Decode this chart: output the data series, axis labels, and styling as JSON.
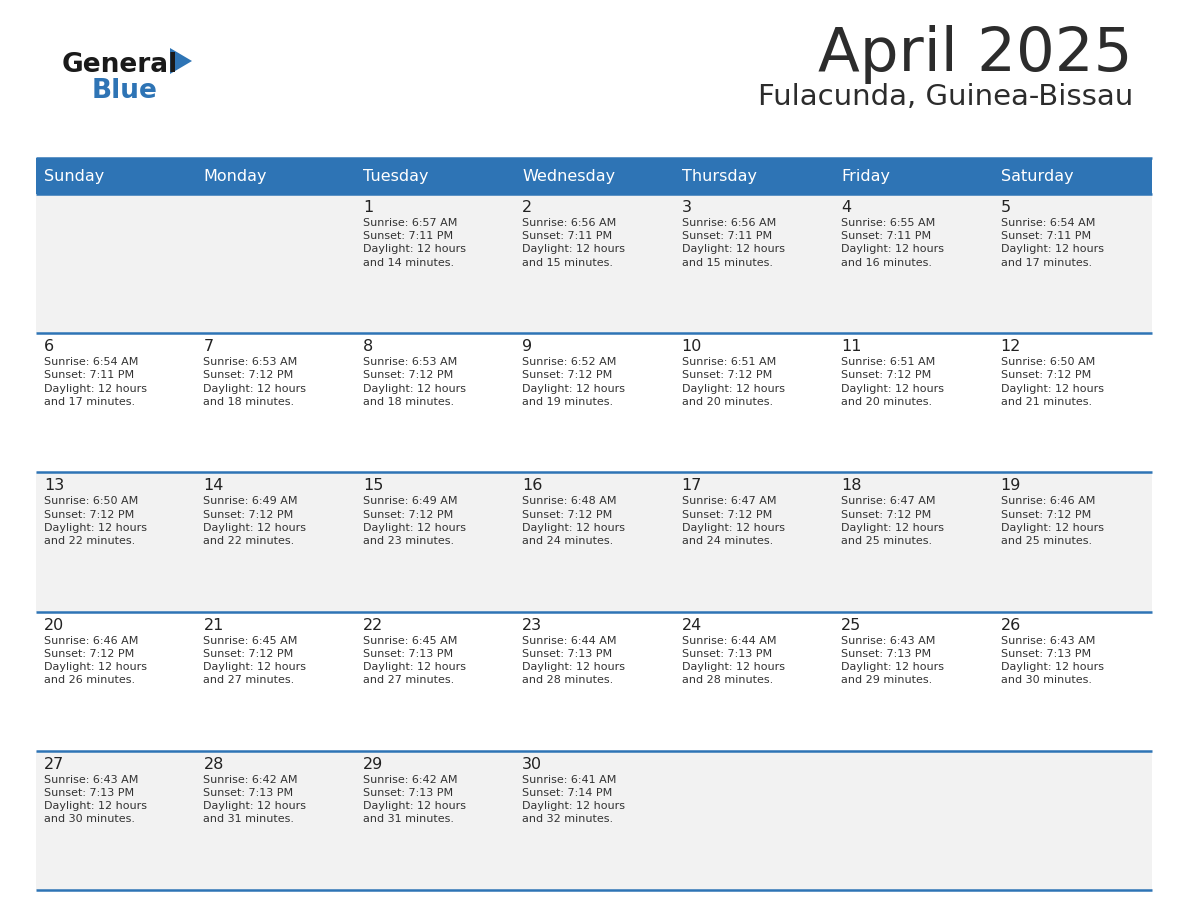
{
  "title": "April 2025",
  "subtitle": "Fulacunda, Guinea-Bissau",
  "header_bg_color": "#2E74B5",
  "header_text_color": "#FFFFFF",
  "days_of_week": [
    "Sunday",
    "Monday",
    "Tuesday",
    "Wednesday",
    "Thursday",
    "Friday",
    "Saturday"
  ],
  "row_bg_colors": [
    "#F2F2F2",
    "#FFFFFF",
    "#F2F2F2",
    "#FFFFFF",
    "#F2F2F2"
  ],
  "cell_border_color": "#2E74B5",
  "title_color": "#2C2C2C",
  "subtitle_color": "#2C2C2C",
  "logo_general_color": "#1A1A1A",
  "logo_blue_color": "#2E74B5",
  "calendar": [
    [
      {
        "day": null,
        "text": ""
      },
      {
        "day": null,
        "text": ""
      },
      {
        "day": 1,
        "text": "Sunrise: 6:57 AM\nSunset: 7:11 PM\nDaylight: 12 hours\nand 14 minutes."
      },
      {
        "day": 2,
        "text": "Sunrise: 6:56 AM\nSunset: 7:11 PM\nDaylight: 12 hours\nand 15 minutes."
      },
      {
        "day": 3,
        "text": "Sunrise: 6:56 AM\nSunset: 7:11 PM\nDaylight: 12 hours\nand 15 minutes."
      },
      {
        "day": 4,
        "text": "Sunrise: 6:55 AM\nSunset: 7:11 PM\nDaylight: 12 hours\nand 16 minutes."
      },
      {
        "day": 5,
        "text": "Sunrise: 6:54 AM\nSunset: 7:11 PM\nDaylight: 12 hours\nand 17 minutes."
      }
    ],
    [
      {
        "day": 6,
        "text": "Sunrise: 6:54 AM\nSunset: 7:11 PM\nDaylight: 12 hours\nand 17 minutes."
      },
      {
        "day": 7,
        "text": "Sunrise: 6:53 AM\nSunset: 7:12 PM\nDaylight: 12 hours\nand 18 minutes."
      },
      {
        "day": 8,
        "text": "Sunrise: 6:53 AM\nSunset: 7:12 PM\nDaylight: 12 hours\nand 18 minutes."
      },
      {
        "day": 9,
        "text": "Sunrise: 6:52 AM\nSunset: 7:12 PM\nDaylight: 12 hours\nand 19 minutes."
      },
      {
        "day": 10,
        "text": "Sunrise: 6:51 AM\nSunset: 7:12 PM\nDaylight: 12 hours\nand 20 minutes."
      },
      {
        "day": 11,
        "text": "Sunrise: 6:51 AM\nSunset: 7:12 PM\nDaylight: 12 hours\nand 20 minutes."
      },
      {
        "day": 12,
        "text": "Sunrise: 6:50 AM\nSunset: 7:12 PM\nDaylight: 12 hours\nand 21 minutes."
      }
    ],
    [
      {
        "day": 13,
        "text": "Sunrise: 6:50 AM\nSunset: 7:12 PM\nDaylight: 12 hours\nand 22 minutes."
      },
      {
        "day": 14,
        "text": "Sunrise: 6:49 AM\nSunset: 7:12 PM\nDaylight: 12 hours\nand 22 minutes."
      },
      {
        "day": 15,
        "text": "Sunrise: 6:49 AM\nSunset: 7:12 PM\nDaylight: 12 hours\nand 23 minutes."
      },
      {
        "day": 16,
        "text": "Sunrise: 6:48 AM\nSunset: 7:12 PM\nDaylight: 12 hours\nand 24 minutes."
      },
      {
        "day": 17,
        "text": "Sunrise: 6:47 AM\nSunset: 7:12 PM\nDaylight: 12 hours\nand 24 minutes."
      },
      {
        "day": 18,
        "text": "Sunrise: 6:47 AM\nSunset: 7:12 PM\nDaylight: 12 hours\nand 25 minutes."
      },
      {
        "day": 19,
        "text": "Sunrise: 6:46 AM\nSunset: 7:12 PM\nDaylight: 12 hours\nand 25 minutes."
      }
    ],
    [
      {
        "day": 20,
        "text": "Sunrise: 6:46 AM\nSunset: 7:12 PM\nDaylight: 12 hours\nand 26 minutes."
      },
      {
        "day": 21,
        "text": "Sunrise: 6:45 AM\nSunset: 7:12 PM\nDaylight: 12 hours\nand 27 minutes."
      },
      {
        "day": 22,
        "text": "Sunrise: 6:45 AM\nSunset: 7:13 PM\nDaylight: 12 hours\nand 27 minutes."
      },
      {
        "day": 23,
        "text": "Sunrise: 6:44 AM\nSunset: 7:13 PM\nDaylight: 12 hours\nand 28 minutes."
      },
      {
        "day": 24,
        "text": "Sunrise: 6:44 AM\nSunset: 7:13 PM\nDaylight: 12 hours\nand 28 minutes."
      },
      {
        "day": 25,
        "text": "Sunrise: 6:43 AM\nSunset: 7:13 PM\nDaylight: 12 hours\nand 29 minutes."
      },
      {
        "day": 26,
        "text": "Sunrise: 6:43 AM\nSunset: 7:13 PM\nDaylight: 12 hours\nand 30 minutes."
      }
    ],
    [
      {
        "day": 27,
        "text": "Sunrise: 6:43 AM\nSunset: 7:13 PM\nDaylight: 12 hours\nand 30 minutes."
      },
      {
        "day": 28,
        "text": "Sunrise: 6:42 AM\nSunset: 7:13 PM\nDaylight: 12 hours\nand 31 minutes."
      },
      {
        "day": 29,
        "text": "Sunrise: 6:42 AM\nSunset: 7:13 PM\nDaylight: 12 hours\nand 31 minutes."
      },
      {
        "day": 30,
        "text": "Sunrise: 6:41 AM\nSunset: 7:14 PM\nDaylight: 12 hours\nand 32 minutes."
      },
      {
        "day": null,
        "text": ""
      },
      {
        "day": null,
        "text": ""
      },
      {
        "day": null,
        "text": ""
      }
    ]
  ]
}
